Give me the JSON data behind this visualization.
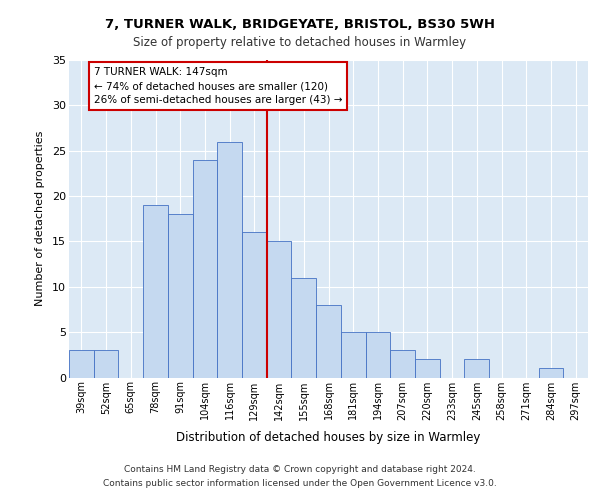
{
  "title1": "7, TURNER WALK, BRIDGEYATE, BRISTOL, BS30 5WH",
  "title2": "Size of property relative to detached houses in Warmley",
  "xlabel": "Distribution of detached houses by size in Warmley",
  "ylabel": "Number of detached properties",
  "bar_labels": [
    "39sqm",
    "52sqm",
    "65sqm",
    "78sqm",
    "91sqm",
    "104sqm",
    "116sqm",
    "129sqm",
    "142sqm",
    "155sqm",
    "168sqm",
    "181sqm",
    "194sqm",
    "207sqm",
    "220sqm",
    "233sqm",
    "245sqm",
    "258sqm",
    "271sqm",
    "284sqm",
    "297sqm"
  ],
  "bar_values": [
    3,
    3,
    0,
    19,
    18,
    24,
    26,
    16,
    15,
    11,
    8,
    5,
    5,
    3,
    2,
    0,
    2,
    0,
    0,
    1,
    0
  ],
  "bar_color": "#c5d9f0",
  "bar_edge_color": "#4472c4",
  "vline_x": 7.5,
  "vline_color": "#cc0000",
  "annotation_text": "7 TURNER WALK: 147sqm\n← 74% of detached houses are smaller (120)\n26% of semi-detached houses are larger (43) →",
  "annotation_box_color": "#ffffff",
  "annotation_box_edge": "#cc0000",
  "ylim": [
    0,
    35
  ],
  "yticks": [
    0,
    5,
    10,
    15,
    20,
    25,
    30,
    35
  ],
  "background_color": "#dce9f5",
  "grid_color": "#ffffff",
  "footer1": "Contains HM Land Registry data © Crown copyright and database right 2024.",
  "footer2": "Contains public sector information licensed under the Open Government Licence v3.0."
}
